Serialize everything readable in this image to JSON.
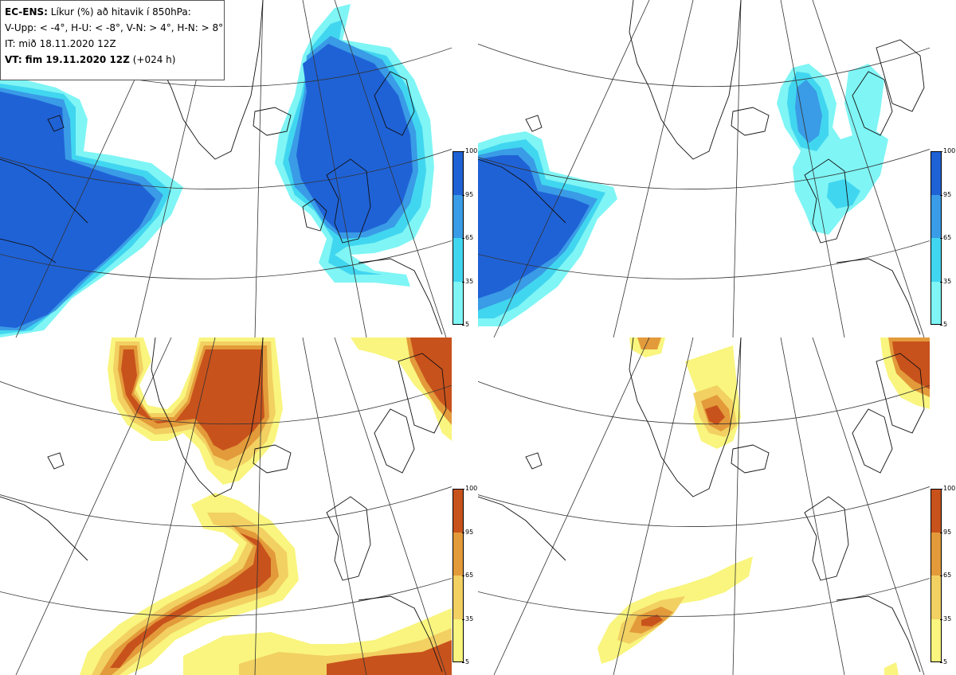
{
  "legend": {
    "model": "EC-ENS:",
    "title": "Líkur (%) að hitavik í 850hPa:",
    "thresholds": "V-Upp: < -4°, H-U: < -8°, V-N: > 4°, H-N: > 8°",
    "init_time": "IT: mið 18.11.2020 12Z",
    "valid_label": "VT: fim 19.11.2020 12Z",
    "lead": "(+024 h)"
  },
  "panels": [
    {
      "id": "V-Upp",
      "meaning": "< -4°",
      "scheme": "blue"
    },
    {
      "id": "H-U",
      "meaning": "< -8°",
      "scheme": "blue"
    },
    {
      "id": "V-N",
      "meaning": "> 4°",
      "scheme": "orange"
    },
    {
      "id": "H-N",
      "meaning": "> 8°",
      "scheme": "orange"
    }
  ],
  "colorbar": {
    "ticks": [
      "100",
      "95",
      "65",
      "35",
      "5"
    ]
  },
  "colors": {
    "blue_levels": [
      "#7ff5f5",
      "#41d6f0",
      "#3a9be6",
      "#1f62d6"
    ],
    "orange_levels": [
      "#f9f57e",
      "#f2d062",
      "#e39a3a",
      "#c8521c"
    ]
  }
}
